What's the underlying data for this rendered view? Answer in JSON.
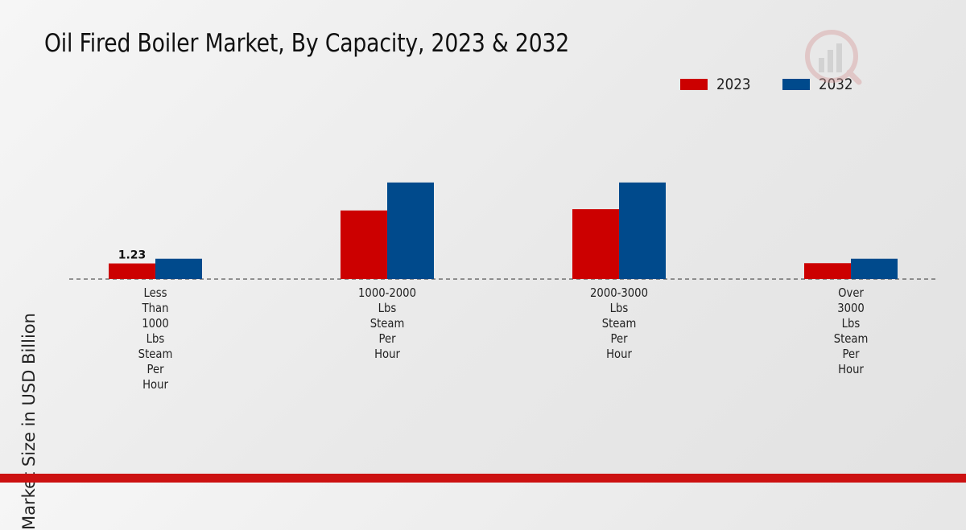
{
  "chart_data": {
    "type": "bar",
    "title": "Oil Fired Boiler Market, By Capacity, 2023 & 2032",
    "xlabel": "",
    "ylabel": "Market Size in USD Billion",
    "ylim": [
      0,
      10
    ],
    "categories": [
      "Less\nThan\n1000\nLbs\nSteam\nPer\nHour",
      "1000-2000\nLbs\nSteam\nPer\nHour",
      "2000-3000\nLbs\nSteam\nPer\nHour",
      "Over\n3000\nLbs\nSteam\nPer\nHour"
    ],
    "series": [
      {
        "name": "2023",
        "color": "#cc0000",
        "values": [
          1.23,
          5.4,
          5.5,
          1.25
        ]
      },
      {
        "name": "2032",
        "color": "#004a8c",
        "values": [
          1.6,
          7.6,
          7.6,
          1.6
        ]
      }
    ],
    "data_labels": [
      {
        "series": "2023",
        "category_index": 0,
        "text": "1.23"
      }
    ],
    "legend": "top-right",
    "grid": false
  },
  "colors": {
    "accent_bar": "#cc1111"
  }
}
